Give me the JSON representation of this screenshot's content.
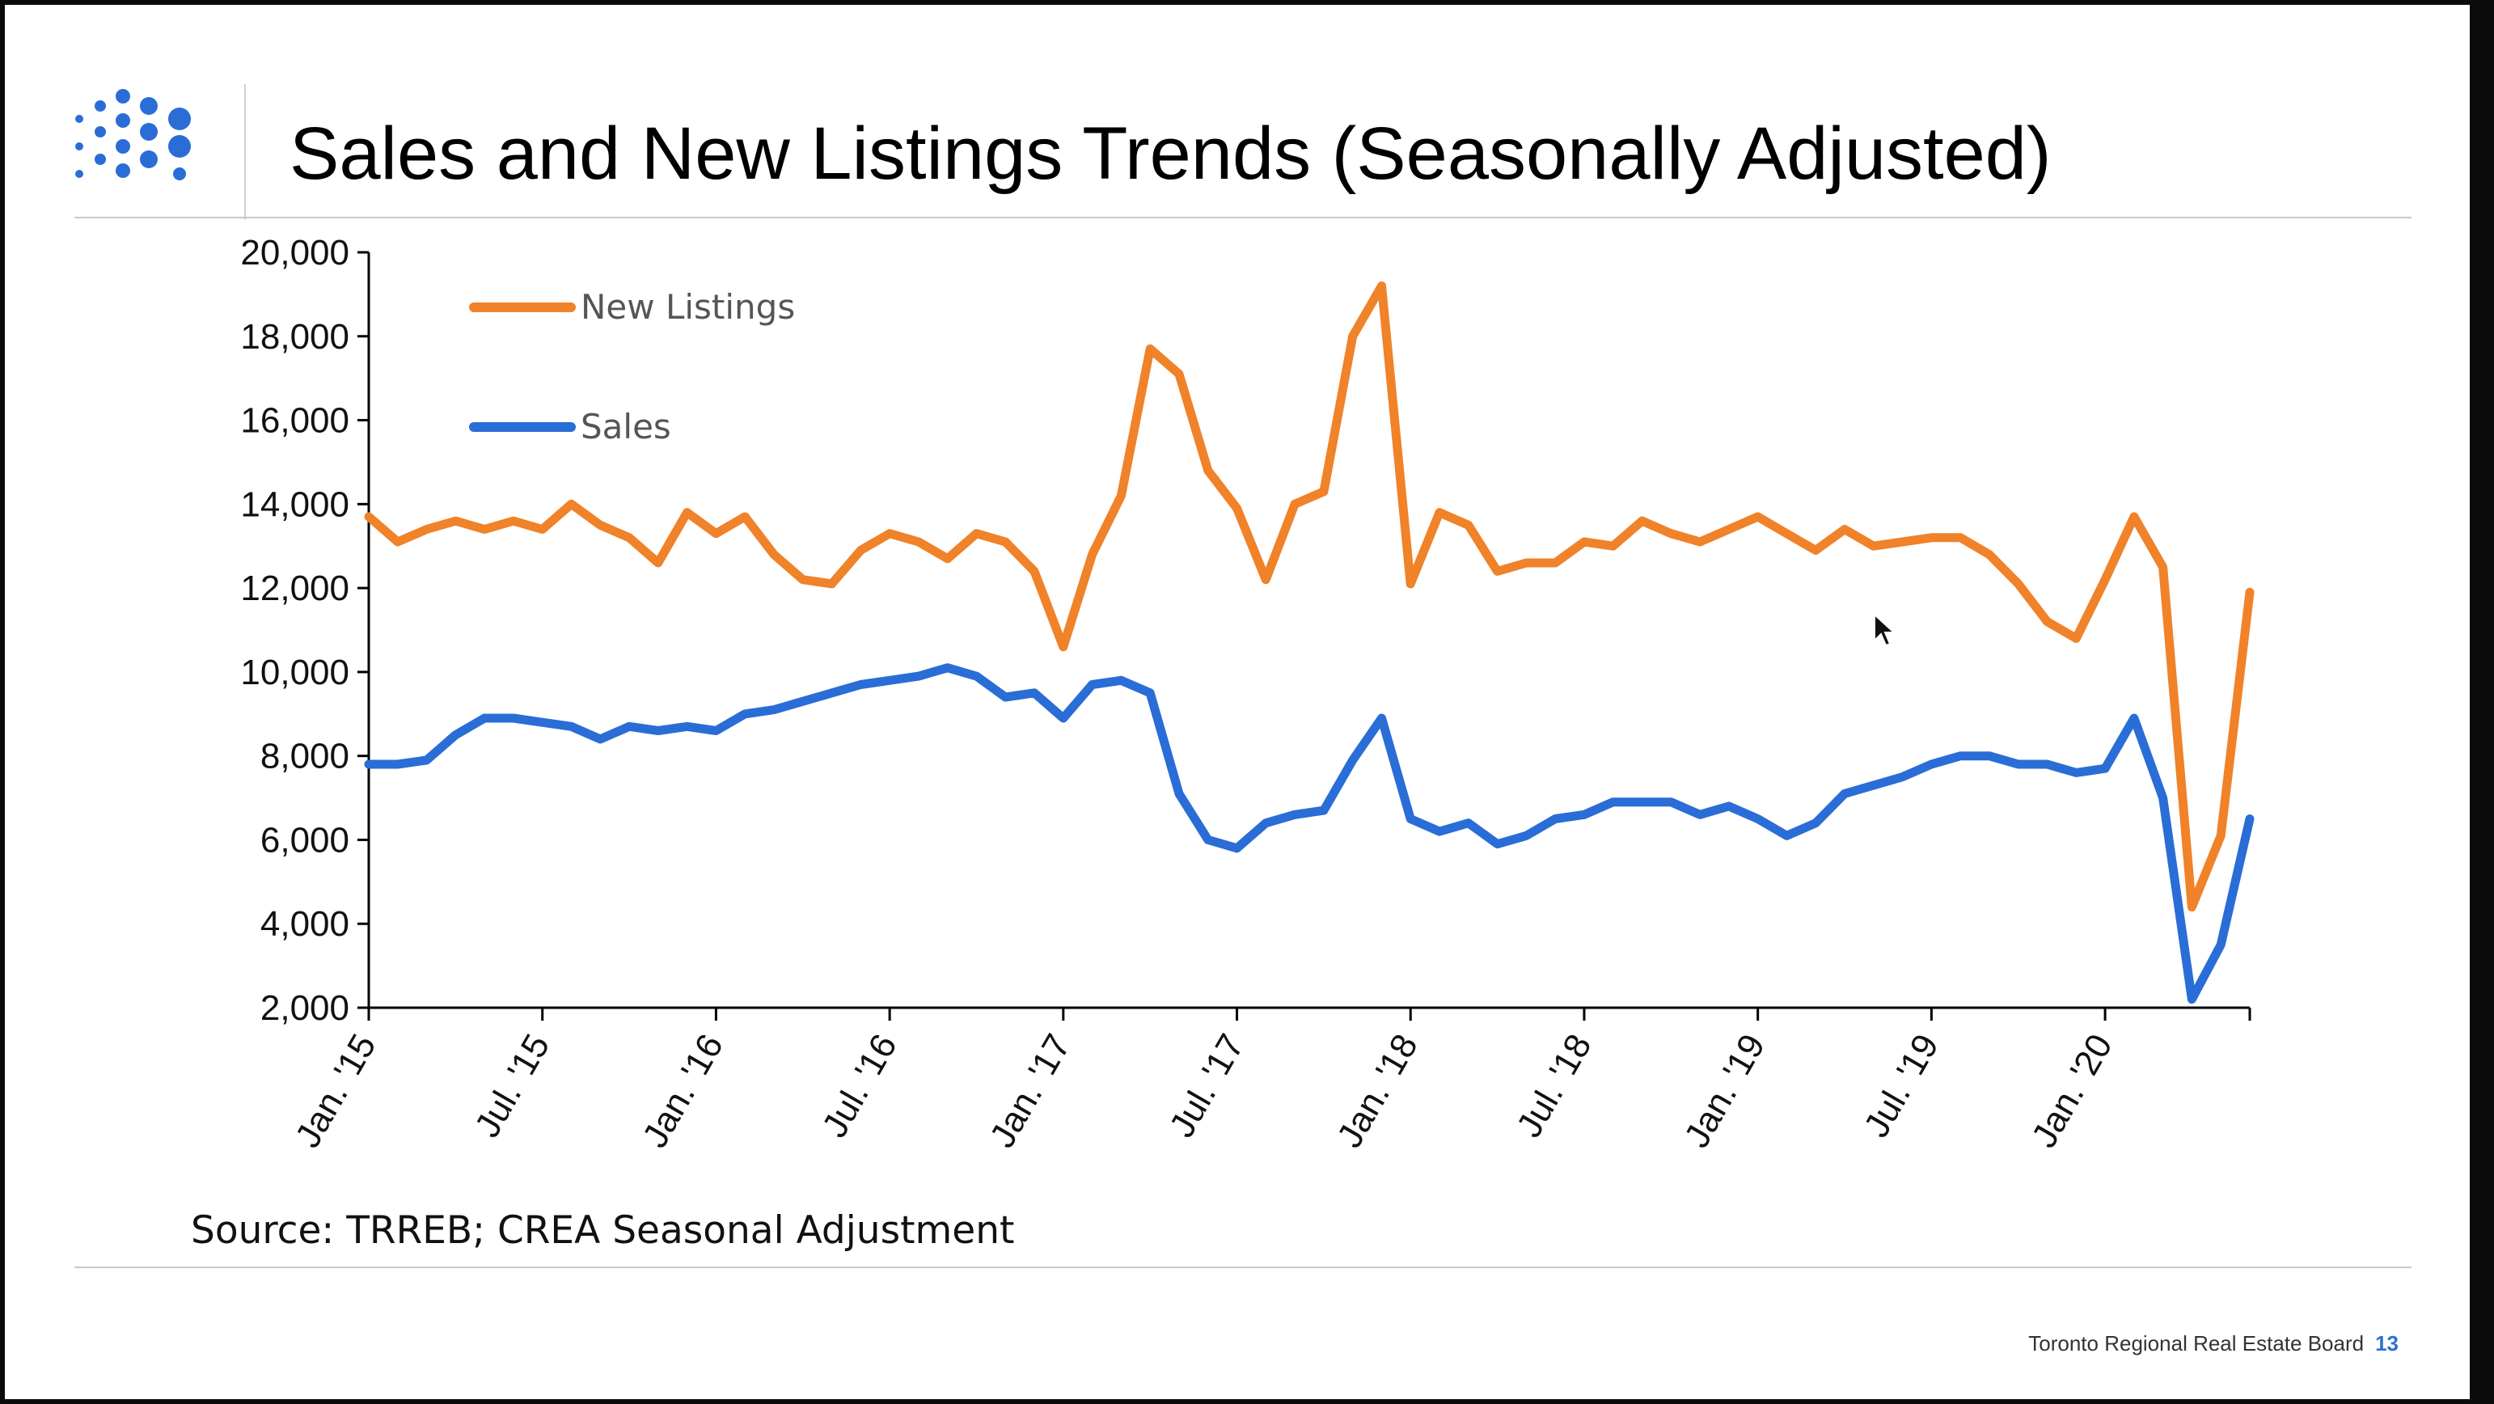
{
  "slide": {
    "title": "Sales and New Listings Trends (Seasonally Adjusted)",
    "source": "Source: TRREB; CREA Seasonal Adjustment",
    "footer_org": "Toronto Regional Real Estate Board",
    "page_number": "13",
    "accent_color": "#2f6fd6"
  },
  "chart_data": {
    "type": "line",
    "title": "",
    "xlabel": "",
    "ylabel": "",
    "ylim": [
      2000,
      20000
    ],
    "yticks": [
      2000,
      4000,
      6000,
      8000,
      10000,
      12000,
      14000,
      16000,
      18000,
      20000
    ],
    "ytick_labels": [
      "2,000",
      "4,000",
      "6,000",
      "8,000",
      "10,000",
      "12,000",
      "14,000",
      "16,000",
      "18,000",
      "20,000"
    ],
    "xtick_labels": [
      "Jan. '15",
      "Jul. '15",
      "Jan. '16",
      "Jul. '16",
      "Jan. '17",
      "Jul. '17",
      "Jan. '18",
      "Jul. '18",
      "Jan. '19",
      "Jul. '19",
      "Jan. '20"
    ],
    "x_start": "2015-01",
    "grid": false,
    "legend_position": "top-left",
    "series": [
      {
        "name": "New Listings",
        "color": "#f08229",
        "values": [
          13700,
          13100,
          13400,
          13600,
          13400,
          13600,
          13400,
          14000,
          13500,
          13200,
          12600,
          13800,
          13300,
          13700,
          12800,
          12200,
          12100,
          12900,
          13300,
          13100,
          12700,
          13300,
          13100,
          12400,
          10600,
          12800,
          14200,
          17700,
          17100,
          14800,
          13900,
          12200,
          14000,
          14300,
          18000,
          19200,
          12100,
          13800,
          13500,
          12400,
          12600,
          12600,
          13100,
          13000,
          13600,
          13300,
          13100,
          13400,
          13700,
          13300,
          12900,
          13400,
          13000,
          13100,
          13200,
          13200,
          12800,
          12100,
          11200,
          10800,
          12200,
          13700,
          12500,
          4400,
          6100,
          11900
        ]
      },
      {
        "name": "Sales",
        "color": "#2a6dd6",
        "values": [
          7800,
          7800,
          7900,
          8500,
          8900,
          8900,
          8800,
          8700,
          8400,
          8700,
          8600,
          8700,
          8600,
          9000,
          9100,
          9300,
          9500,
          9700,
          9800,
          9900,
          10100,
          9900,
          9400,
          9500,
          8900,
          9700,
          9800,
          9500,
          7100,
          6000,
          5800,
          6400,
          6600,
          6700,
          7900,
          8900,
          6500,
          6200,
          6400,
          5900,
          6100,
          6500,
          6600,
          6900,
          6900,
          6900,
          6600,
          6800,
          6500,
          6100,
          6400,
          7100,
          7300,
          7500,
          7800,
          8000,
          8000,
          7800,
          7800,
          7600,
          7700,
          8900,
          7000,
          2200,
          3500,
          6500
        ]
      }
    ]
  }
}
